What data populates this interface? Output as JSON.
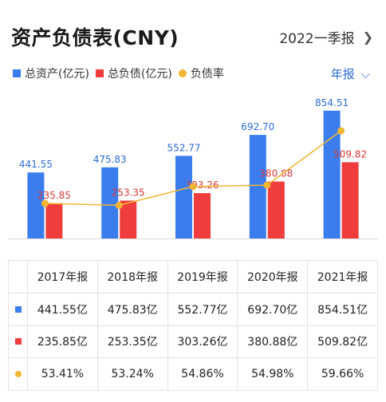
{
  "header": {
    "title": "资产负债表(CNY)",
    "period_label": "2022一季报",
    "chevron": "chevron-right-icon"
  },
  "legend": {
    "assets": "总资产(亿元)",
    "liabilities": "总负债(亿元)",
    "ratio": "负债率"
  },
  "frequency": {
    "label": "年报",
    "chevron": "chevron-down-icon"
  },
  "colors": {
    "assets": "#3b7ded",
    "liabilities": "#ef3c3c",
    "ratio": "#f3b534",
    "link": "#2d6bd6"
  },
  "chart_data": {
    "type": "bar",
    "categories": [
      "2017年报",
      "2018年报",
      "2019年报",
      "2020年报",
      "2021年报"
    ],
    "series": [
      {
        "name": "总资产(亿元)",
        "type": "bar",
        "values": [
          441.55,
          475.83,
          552.77,
          692.7,
          854.51
        ],
        "labels": [
          "441.55",
          "475.83",
          "552.77",
          "692.70",
          "854.51"
        ]
      },
      {
        "name": "总负债(亿元)",
        "type": "bar",
        "values": [
          235.85,
          253.35,
          303.26,
          380.88,
          509.82
        ],
        "labels": [
          "235.85",
          "253.35",
          "303.26",
          "380.88",
          "509.82"
        ]
      },
      {
        "name": "负债率",
        "type": "line",
        "values": [
          53.41,
          53.24,
          54.86,
          54.98,
          59.66
        ],
        "unit": "%"
      }
    ],
    "ylim": [
      0,
      960
    ],
    "ratio_ylim": [
      51,
      62
    ],
    "legend_position": "top-left",
    "grid": false
  },
  "table": {
    "headers": [
      "2017年报",
      "2018年报",
      "2019年报",
      "2020年报",
      "2021年报"
    ],
    "rows": [
      {
        "marker": "assets",
        "cells": [
          "441.55亿",
          "475.83亿",
          "552.77亿",
          "692.70亿",
          "854.51亿"
        ]
      },
      {
        "marker": "liabilities",
        "cells": [
          "235.85亿",
          "253.35亿",
          "303.26亿",
          "380.88亿",
          "509.82亿"
        ]
      },
      {
        "marker": "ratio",
        "cells": [
          "53.41%",
          "53.24%",
          "54.86%",
          "54.98%",
          "59.66%"
        ]
      }
    ]
  }
}
